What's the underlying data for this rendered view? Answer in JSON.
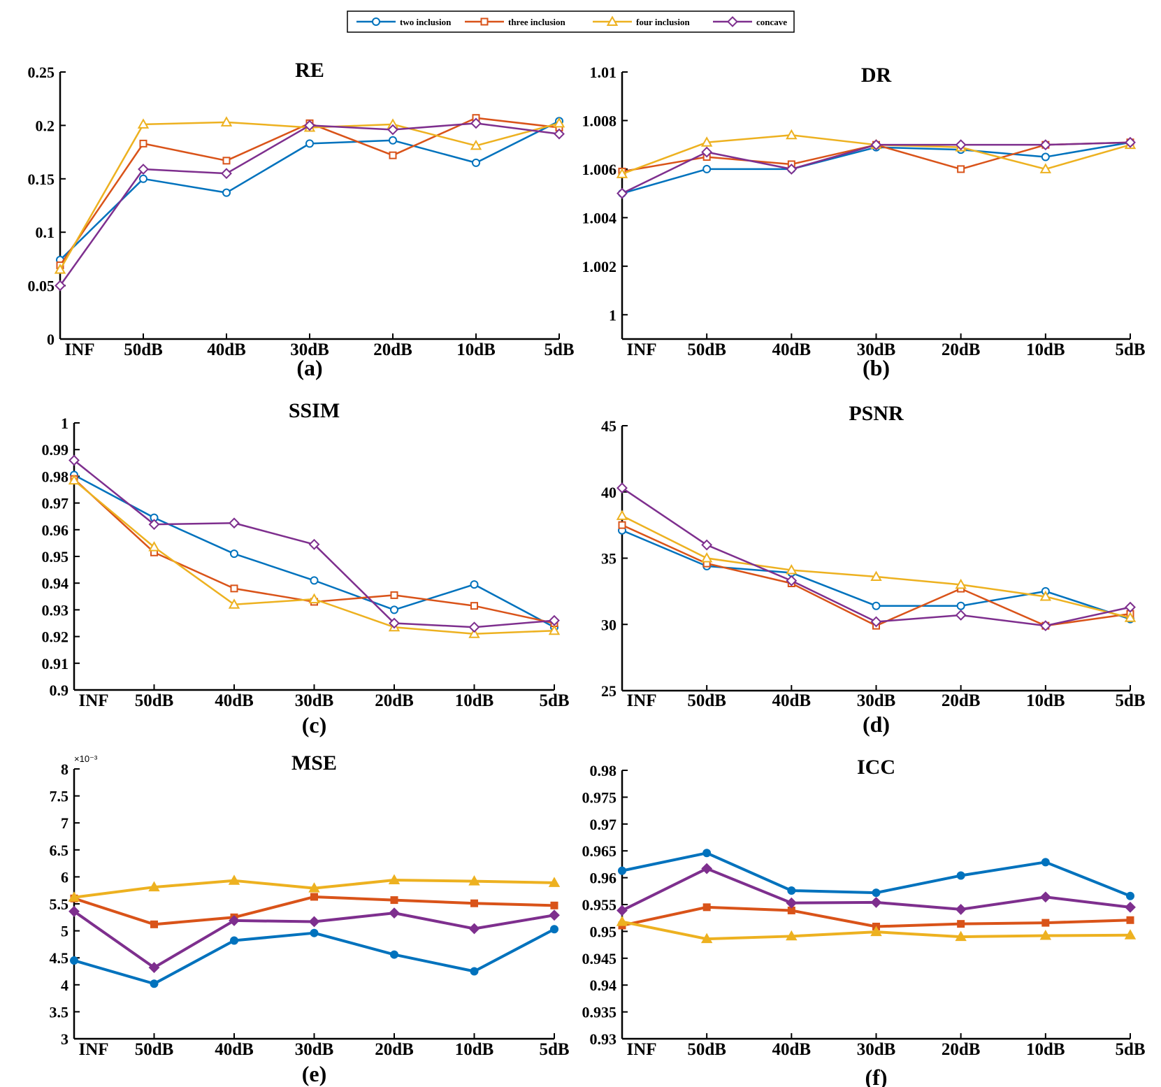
{
  "colors": {
    "two inclusion": "#0072BD",
    "three inclusion": "#D95319",
    "four inclusion": "#EDB120",
    "concave": "#7E2F8E"
  },
  "legend": {
    "entries": [
      {
        "label": "two inclusion",
        "marker": "circle"
      },
      {
        "label": "three inclusion",
        "marker": "square"
      },
      {
        "label": "four inclusion",
        "marker": "triangle"
      },
      {
        "label": "concave",
        "marker": "diamond"
      }
    ]
  },
  "chart_data": [
    {
      "type": "line",
      "title": "RE",
      "label": "(a)",
      "categories": [
        "INF",
        "50dB",
        "40dB",
        "30dB",
        "20dB",
        "10dB",
        "5dB"
      ],
      "ylim": [
        0,
        0.25
      ],
      "yticks": [
        0,
        0.05,
        0.1,
        0.15,
        0.2,
        0.25
      ],
      "ytick_labels": [
        "0",
        "0.05",
        "0.1",
        "0.15",
        "0.2",
        "0.25"
      ],
      "series": [
        {
          "name": "two inclusion",
          "values": [
            0.074,
            0.15,
            0.137,
            0.183,
            0.186,
            0.165,
            0.204
          ]
        },
        {
          "name": "three inclusion",
          "values": [
            0.069,
            0.183,
            0.167,
            0.202,
            0.172,
            0.207,
            0.198
          ]
        },
        {
          "name": "four inclusion",
          "values": [
            0.065,
            0.201,
            0.203,
            0.198,
            0.201,
            0.181,
            0.202
          ]
        },
        {
          "name": "concave",
          "values": [
            0.05,
            0.159,
            0.155,
            0.2,
            0.196,
            0.202,
            0.192
          ]
        }
      ]
    },
    {
      "type": "line",
      "title": "DR",
      "label": "(b)",
      "categories": [
        "INF",
        "50dB",
        "40dB",
        "30dB",
        "20dB",
        "10dB",
        "5dB"
      ],
      "ylim": [
        0.999,
        1.01
      ],
      "yticks": [
        1,
        1.002,
        1.004,
        1.006,
        1.008,
        1.01
      ],
      "ytick_labels": [
        "1",
        "1.002",
        "1.004",
        "1.006",
        "1.008",
        "1.01"
      ],
      "series": [
        {
          "name": "two inclusion",
          "values": [
            1.005,
            1.006,
            1.006,
            1.0069,
            1.0068,
            1.0065,
            1.0071
          ]
        },
        {
          "name": "three inclusion",
          "values": [
            1.0059,
            1.0065,
            1.0062,
            1.007,
            1.006,
            1.007,
            1.0071
          ]
        },
        {
          "name": "four inclusion",
          "values": [
            1.0058,
            1.0071,
            1.0074,
            1.007,
            1.0069,
            1.006,
            1.007
          ]
        },
        {
          "name": "concave",
          "values": [
            1.005,
            1.0067,
            1.006,
            1.007,
            1.007,
            1.007,
            1.0071
          ]
        }
      ]
    },
    {
      "type": "line",
      "title": "SSIM",
      "label": "(c)",
      "categories": [
        "INF",
        "50dB",
        "40dB",
        "30dB",
        "20dB",
        "10dB",
        "5dB"
      ],
      "ylim": [
        0.9,
        1
      ],
      "yticks": [
        0.9,
        0.91,
        0.92,
        0.93,
        0.94,
        0.95,
        0.96,
        0.97,
        0.98,
        0.99,
        1
      ],
      "ytick_labels": [
        "0.9",
        "0.91",
        "0.92",
        "0.93",
        "0.94",
        "0.95",
        "0.96",
        "0.97",
        "0.98",
        "0.99",
        "1"
      ],
      "series": [
        {
          "name": "two inclusion",
          "values": [
            0.9805,
            0.9645,
            0.951,
            0.941,
            0.93,
            0.9395,
            0.9235
          ]
        },
        {
          "name": "three inclusion",
          "values": [
            0.979,
            0.9515,
            0.938,
            0.933,
            0.9355,
            0.9315,
            0.925
          ]
        },
        {
          "name": "four inclusion",
          "values": [
            0.9785,
            0.9535,
            0.932,
            0.934,
            0.9235,
            0.921,
            0.9222
          ]
        },
        {
          "name": "concave",
          "values": [
            0.986,
            0.962,
            0.9625,
            0.9545,
            0.925,
            0.9235,
            0.926
          ]
        }
      ]
    },
    {
      "type": "line",
      "title": "PSNR",
      "label": "(d)",
      "categories": [
        "INF",
        "50dB",
        "40dB",
        "30dB",
        "20dB",
        "10dB",
        "5dB"
      ],
      "ylim": [
        25,
        45
      ],
      "yticks": [
        25,
        30,
        35,
        40,
        45
      ],
      "ytick_labels": [
        "25",
        "30",
        "35",
        "40",
        "45"
      ],
      "series": [
        {
          "name": "two inclusion",
          "values": [
            37.1,
            34.4,
            33.9,
            31.4,
            31.4,
            32.5,
            30.4
          ]
        },
        {
          "name": "three inclusion",
          "values": [
            37.5,
            34.6,
            33.1,
            29.9,
            32.7,
            29.9,
            30.8
          ]
        },
        {
          "name": "four inclusion",
          "values": [
            38.2,
            35.0,
            34.1,
            33.6,
            33.0,
            32.1,
            30.5
          ]
        },
        {
          "name": "concave",
          "values": [
            40.3,
            36.0,
            33.3,
            30.2,
            30.7,
            29.9,
            31.3
          ]
        }
      ]
    },
    {
      "type": "line",
      "title": "MSE",
      "label": "(e)",
      "multiplier": "×10⁻³",
      "categories": [
        "INF",
        "50dB",
        "40dB",
        "30dB",
        "20dB",
        "10dB",
        "5dB"
      ],
      "ylim": [
        3,
        8
      ],
      "yticks": [
        3,
        3.5,
        4,
        4.5,
        5,
        5.5,
        6,
        6.5,
        7,
        7.5,
        8
      ],
      "ytick_labels": [
        "3",
        "3.5",
        "4",
        "4.5",
        "5",
        "5.5",
        "6",
        "6.5",
        "7",
        "7.5",
        "8"
      ],
      "series": [
        {
          "name": "two inclusion",
          "values": [
            4.45,
            4.02,
            4.82,
            4.96,
            4.56,
            4.25,
            5.03
          ]
        },
        {
          "name": "three inclusion",
          "values": [
            5.6,
            5.12,
            5.25,
            5.63,
            5.57,
            5.51,
            5.47
          ]
        },
        {
          "name": "four inclusion",
          "values": [
            5.62,
            5.81,
            5.93,
            5.79,
            5.94,
            5.92,
            5.89
          ]
        },
        {
          "name": "concave",
          "values": [
            5.36,
            4.32,
            5.19,
            5.17,
            5.33,
            5.04,
            5.29
          ]
        }
      ]
    },
    {
      "type": "line",
      "title": "ICC",
      "label": "(f)",
      "categories": [
        "INF",
        "50dB",
        "40dB",
        "30dB",
        "20dB",
        "10dB",
        "5dB"
      ],
      "ylim": [
        0.93,
        0.98
      ],
      "yticks": [
        0.93,
        0.935,
        0.94,
        0.945,
        0.95,
        0.955,
        0.96,
        0.965,
        0.97,
        0.975,
        0.98
      ],
      "ytick_labels": [
        "0.93",
        "0.935",
        "0.94",
        "0.945",
        "0.95",
        "0.955",
        "0.96",
        "0.965",
        "0.97",
        "0.975",
        "0.98"
      ],
      "series": [
        {
          "name": "two inclusion",
          "values": [
            0.9613,
            0.9646,
            0.9576,
            0.9572,
            0.9604,
            0.9629,
            0.9566
          ]
        },
        {
          "name": "three inclusion",
          "values": [
            0.9511,
            0.9545,
            0.9539,
            0.9509,
            0.9514,
            0.9516,
            0.9521
          ]
        },
        {
          "name": "four inclusion",
          "values": [
            0.9518,
            0.9486,
            0.9491,
            0.9499,
            0.949,
            0.9492,
            0.9493
          ]
        },
        {
          "name": "concave",
          "values": [
            0.9539,
            0.9617,
            0.9553,
            0.9554,
            0.9541,
            0.9564,
            0.9545
          ]
        }
      ]
    }
  ]
}
